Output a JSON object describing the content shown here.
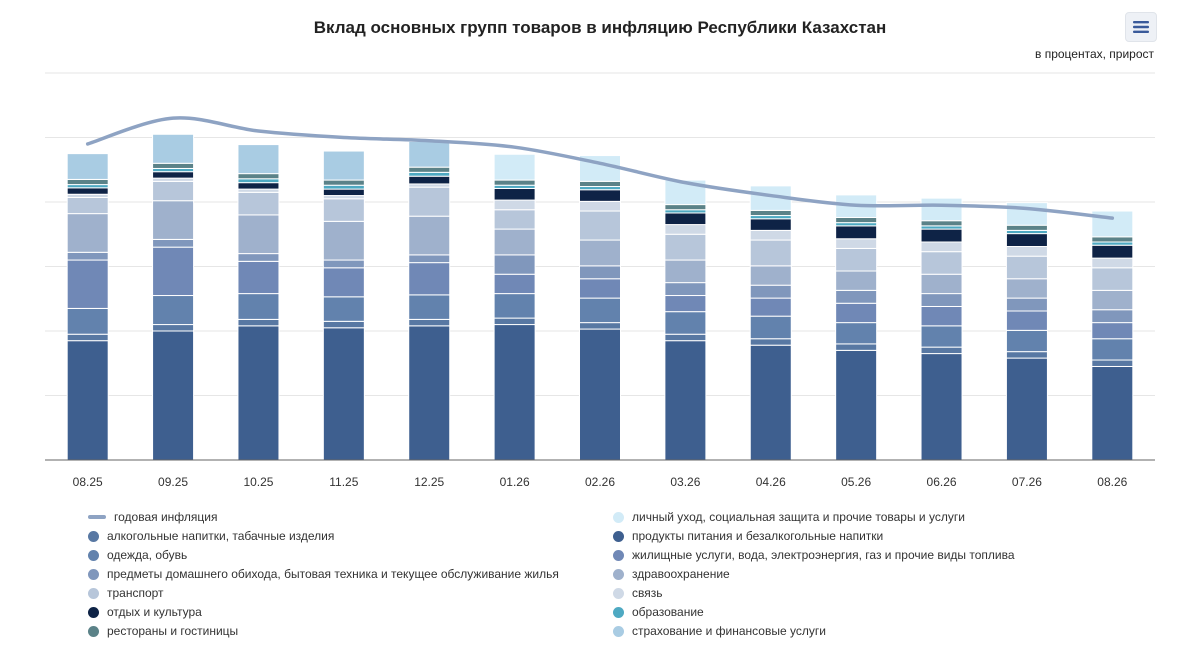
{
  "header": {
    "title": "Вклад основных групп товаров в инфляцию Республики Казахстан",
    "subtitle": "в процентах, прирост",
    "menu_icon": "hamburger-menu-icon"
  },
  "chart_data": {
    "type": "bar",
    "stacked": true,
    "categories": [
      "08.25",
      "09.25",
      "10.25",
      "11.25",
      "12.25",
      "01.26",
      "02.26",
      "03.26",
      "04.26",
      "05.26",
      "06.26",
      "07.26",
      "08.26"
    ],
    "ylim": [
      0,
      6
    ],
    "grid": true,
    "legend_position": "bottom",
    "line_series": {
      "name": "годовая инфляция",
      "color": "#8ea3c3",
      "values": [
        4.9,
        5.3,
        5.1,
        5.0,
        4.95,
        4.85,
        4.6,
        4.3,
        4.1,
        3.95,
        3.95,
        3.9,
        3.75
      ]
    },
    "series": [
      {
        "name": "продукты питания и безалкогольные напитки",
        "color": "#3e5f8f",
        "values": [
          1.85,
          2.0,
          2.08,
          2.05,
          2.08,
          2.1,
          2.03,
          1.85,
          1.78,
          1.7,
          1.65,
          1.58,
          1.45
        ]
      },
      {
        "name": "алкогольные напитки, табачные изделия",
        "color": "#5878a3",
        "values": [
          0.1,
          0.1,
          0.1,
          0.1,
          0.1,
          0.1,
          0.1,
          0.1,
          0.1,
          0.1,
          0.1,
          0.1,
          0.1
        ]
      },
      {
        "name": "одежда, обувь",
        "color": "#6282ad",
        "values": [
          0.4,
          0.45,
          0.4,
          0.38,
          0.38,
          0.38,
          0.38,
          0.35,
          0.35,
          0.33,
          0.33,
          0.33,
          0.33
        ]
      },
      {
        "name": "жилищные услуги, вода, электроэнергия, газ и прочие виды топлива",
        "color": "#7088b6",
        "values": [
          0.75,
          0.75,
          0.5,
          0.45,
          0.5,
          0.3,
          0.3,
          0.25,
          0.28,
          0.3,
          0.3,
          0.3,
          0.25
        ]
      },
      {
        "name": "предметы домашнего обихода, бытовая техника и текущее обслуживание жилья",
        "color": "#8097bc",
        "values": [
          0.12,
          0.12,
          0.12,
          0.12,
          0.12,
          0.3,
          0.2,
          0.2,
          0.2,
          0.2,
          0.2,
          0.2,
          0.2
        ]
      },
      {
        "name": "здравоохранение",
        "color": "#9fb1cc",
        "values": [
          0.6,
          0.6,
          0.6,
          0.6,
          0.6,
          0.4,
          0.4,
          0.35,
          0.3,
          0.3,
          0.3,
          0.3,
          0.3
        ]
      },
      {
        "name": "транспорт",
        "color": "#b7c6da",
        "values": [
          0.25,
          0.3,
          0.35,
          0.35,
          0.45,
          0.3,
          0.45,
          0.4,
          0.4,
          0.35,
          0.35,
          0.35,
          0.35
        ]
      },
      {
        "name": "связь",
        "color": "#cfd9e6",
        "values": [
          0.05,
          0.05,
          0.05,
          0.05,
          0.05,
          0.15,
          0.15,
          0.15,
          0.15,
          0.15,
          0.15,
          0.15,
          0.15
        ]
      },
      {
        "name": "отдых и культура",
        "color": "#0e2346",
        "values": [
          0.1,
          0.1,
          0.1,
          0.1,
          0.12,
          0.18,
          0.18,
          0.18,
          0.18,
          0.2,
          0.2,
          0.2,
          0.2
        ]
      },
      {
        "name": "образование",
        "color": "#4ea9c2",
        "values": [
          0.05,
          0.05,
          0.06,
          0.06,
          0.06,
          0.05,
          0.05,
          0.05,
          0.05,
          0.05,
          0.05,
          0.05,
          0.05
        ]
      },
      {
        "name": "рестораны и гостиницы",
        "color": "#5b8288",
        "values": [
          0.08,
          0.08,
          0.08,
          0.08,
          0.08,
          0.08,
          0.08,
          0.08,
          0.08,
          0.08,
          0.08,
          0.08,
          0.08
        ]
      },
      {
        "name": "страхование и финансовые услуги",
        "color": "#a9cce3",
        "values": [
          0.4,
          0.45,
          0.45,
          0.45,
          0.4,
          0.0,
          0.0,
          0.0,
          0.0,
          0.0,
          0.0,
          0.0,
          0.0
        ]
      },
      {
        "name": "личный уход, социальная защита и прочие товары и услуги",
        "color": "#d2ebf7",
        "values": [
          0.0,
          0.0,
          0.0,
          0.0,
          0.0,
          0.4,
          0.4,
          0.38,
          0.38,
          0.35,
          0.35,
          0.35,
          0.4
        ]
      }
    ]
  },
  "legend": {
    "left": [
      {
        "label": "годовая инфляция",
        "color": "#8ea3c3",
        "marker": "line"
      },
      {
        "label": "алкогольные напитки, табачные изделия",
        "color": "#5878a3",
        "marker": "dot"
      },
      {
        "label": "одежда, обувь",
        "color": "#6282ad",
        "marker": "dot"
      },
      {
        "label": "предметы домашнего обихода, бытовая техника и текущее обслуживание жилья",
        "color": "#8097bc",
        "marker": "dot"
      },
      {
        "label": "транспорт",
        "color": "#b7c6da",
        "marker": "dot"
      },
      {
        "label": "отдых и культура",
        "color": "#0e2346",
        "marker": "dot"
      },
      {
        "label": "рестораны и гостиницы",
        "color": "#5b8288",
        "marker": "dot"
      }
    ],
    "right": [
      {
        "label": "личный уход, социальная защита и прочие товары и услуги",
        "color": "#d2ebf7",
        "marker": "dot"
      },
      {
        "label": "продукты питания и безалкогольные напитки",
        "color": "#3e5f8f",
        "marker": "dot"
      },
      {
        "label": "жилищные услуги, вода, электроэнергия, газ и прочие виды топлива",
        "color": "#7088b6",
        "marker": "dot"
      },
      {
        "label": "здравоохранение",
        "color": "#9fb1cc",
        "marker": "dot"
      },
      {
        "label": "связь",
        "color": "#cfd9e6",
        "marker": "dot"
      },
      {
        "label": "образование",
        "color": "#4ea9c2",
        "marker": "dot"
      },
      {
        "label": "страхование и финансовые услуги",
        "color": "#a9cce3",
        "marker": "dot"
      }
    ]
  }
}
